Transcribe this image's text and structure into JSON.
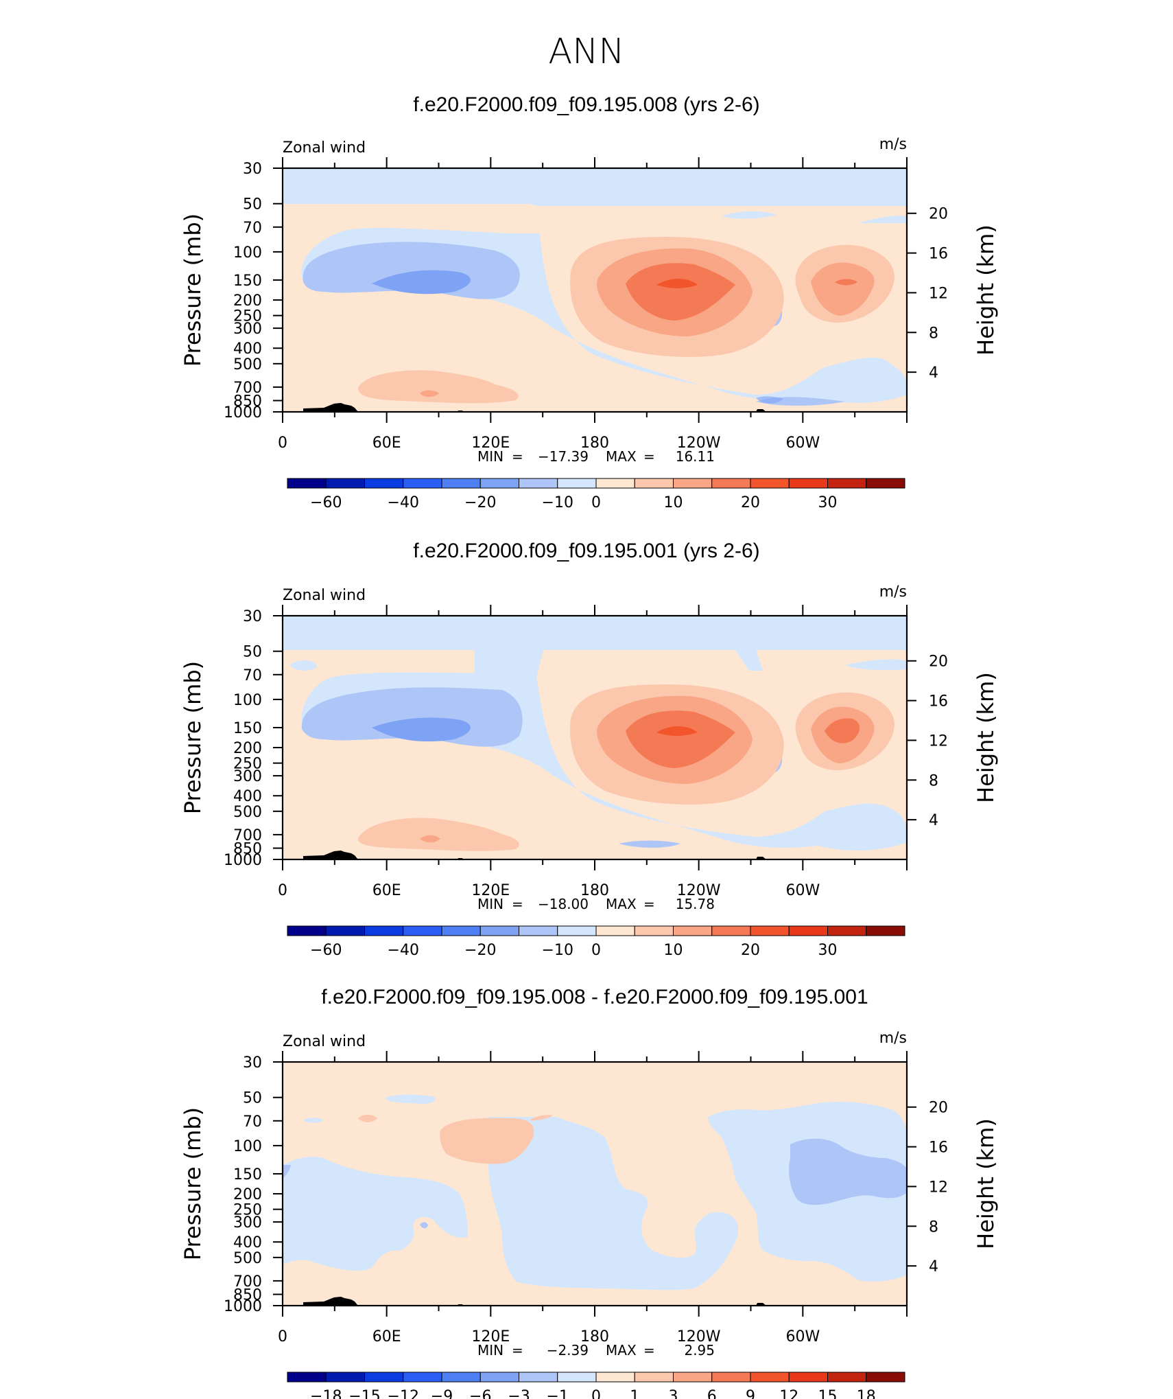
{
  "figure_title": "ANN",
  "colors": {
    "blue_60": "#00008b",
    "blue_50": "#001bb0",
    "blue_40": "#0a3ce0",
    "blue_30": "#2b5ef5",
    "blue_20": "#4f80f3",
    "blue_15": "#7ea2f4",
    "blue_10": "#aec6f7",
    "blue_5": "#d4e6fc",
    "red_0": "#fde7d3",
    "red_5": "#fcc8ad",
    "red_10": "#f8a685",
    "red_15": "#f47a55",
    "red_20": "#f2552b",
    "red_25": "#e8391a",
    "red_30": "#c2240f",
    "red_35": "#8a0c07",
    "land": "#000000"
  },
  "chart_data": [
    {
      "type": "contour",
      "title": "f.e20.F2000.f09_f09.195.008 (yrs 2-6)",
      "left_label": "Zonal wind",
      "right_label": "m/s",
      "ylabel": "Pressure (mb)",
      "y2label": "Height (km)",
      "x_ticks": [
        "0",
        "60E",
        "120E",
        "180",
        "120W",
        "60W"
      ],
      "y_ticks": [
        "30",
        "50",
        "70",
        "100",
        "150",
        "200",
        "250",
        "300",
        "400",
        "500",
        "700",
        "850",
        "1000"
      ],
      "y2_ticks": [
        "20",
        "16",
        "12",
        "8",
        "4"
      ],
      "xlim": [
        0,
        360
      ],
      "ylim": [
        1000,
        30
      ],
      "stats": {
        "min_label": "MIN",
        "min_value": "−17.39",
        "max_label": "MAX",
        "max_value": "16.11"
      },
      "colorbar": {
        "levels": [
          "−60",
          "−40",
          "−20",
          "−10",
          "0",
          "10",
          "20",
          "30"
        ]
      },
      "features": [
        {
          "name": "westerly-jet-pacific",
          "lon": 214,
          "p": 160,
          "value": 16.11
        },
        {
          "name": "westerly-jet-atlantic",
          "lon": 312,
          "p": 155,
          "value": 12
        },
        {
          "name": "easterly-jet-indian",
          "lon": 80,
          "p": 150,
          "value": -17.39
        }
      ]
    },
    {
      "type": "contour",
      "title": "f.e20.F2000.f09_f09.195.001 (yrs 2-6)",
      "left_label": "Zonal wind",
      "right_label": "m/s",
      "ylabel": "Pressure (mb)",
      "y2label": "Height (km)",
      "x_ticks": [
        "0",
        "60E",
        "120E",
        "180",
        "120W",
        "60W"
      ],
      "y_ticks": [
        "30",
        "50",
        "70",
        "100",
        "150",
        "200",
        "250",
        "300",
        "400",
        "500",
        "700",
        "850",
        "1000"
      ],
      "y2_ticks": [
        "20",
        "16",
        "12",
        "8",
        "4"
      ],
      "xlim": [
        0,
        360
      ],
      "ylim": [
        1000,
        30
      ],
      "stats": {
        "min_label": "MIN",
        "min_value": "−18.00",
        "max_label": "MAX",
        "max_value": "15.78"
      },
      "colorbar": {
        "levels": [
          "−60",
          "−40",
          "−20",
          "−10",
          "0",
          "10",
          "20",
          "30"
        ]
      },
      "features": [
        {
          "name": "westerly-jet-pacific",
          "lon": 214,
          "p": 160,
          "value": 15.78
        },
        {
          "name": "westerly-jet-atlantic",
          "lon": 312,
          "p": 160,
          "value": 12
        },
        {
          "name": "easterly-jet-indian",
          "lon": 80,
          "p": 150,
          "value": -18.0
        }
      ]
    },
    {
      "type": "contour",
      "title": "f.e20.F2000.f09_f09.195.008 - f.e20.F2000.f09_f09.195.001",
      "left_label": "Zonal wind",
      "right_label": "m/s",
      "ylabel": "Pressure (mb)",
      "y2label": "Height (km)",
      "x_ticks": [
        "0",
        "60E",
        "120E",
        "180",
        "120W",
        "60W"
      ],
      "y_ticks": [
        "30",
        "50",
        "70",
        "100",
        "150",
        "200",
        "250",
        "300",
        "400",
        "500",
        "700",
        "850",
        "1000"
      ],
      "y2_ticks": [
        "20",
        "16",
        "12",
        "8",
        "4"
      ],
      "xlim": [
        0,
        360
      ],
      "ylim": [
        1000,
        30
      ],
      "stats": {
        "min_label": "MIN",
        "min_value": "−2.39",
        "max_label": "MAX",
        "max_value": "2.95"
      },
      "colorbar": {
        "levels": [
          "−18",
          "−15",
          "−12",
          "−9",
          "−6",
          "−3",
          "−1",
          "0",
          "1",
          "3",
          "6",
          "9",
          "12",
          "15",
          "18"
        ]
      },
      "features": [
        {
          "name": "negative-anomaly-atlantic",
          "lon": 315,
          "p": 170,
          "value": -2.39
        },
        {
          "name": "positive-anomaly-west-pacific",
          "lon": 115,
          "p": 100,
          "value": 2.95
        }
      ]
    }
  ]
}
